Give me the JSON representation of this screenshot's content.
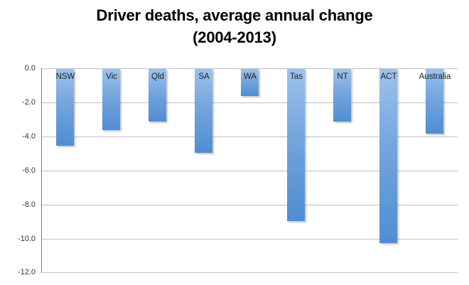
{
  "title": {
    "line1": "Driver deaths, average annual change",
    "line2": "(2004-2013)"
  },
  "chart_data": {
    "type": "bar",
    "title": "Driver deaths, average annual change (2004-2013)",
    "categories": [
      "NSW",
      "Vic",
      "Qld",
      "SA",
      "WA",
      "Tas",
      "NT",
      "ACT",
      "Australia"
    ],
    "values": [
      -4.5,
      -3.6,
      -3.1,
      -4.9,
      -1.6,
      -8.9,
      -3.1,
      -10.2,
      -3.8
    ],
    "xlabel": "",
    "ylabel": "",
    "ylim": [
      -12.0,
      0.0
    ],
    "yticks": [
      0.0,
      -2.0,
      -4.0,
      -6.0,
      -8.0,
      -10.0,
      -12.0
    ],
    "ytick_labels": [
      "0.0",
      "-2.0",
      "-4.0",
      "-6.0",
      "-8.0",
      "-10.0",
      "-12.0"
    ],
    "grid": true,
    "legend": false,
    "bar_direction": "downward",
    "category_label_position": "inside-top",
    "colors": {
      "bar_top": "#9dc2ea",
      "bar_bottom": "#4f8dd3",
      "gridline": "#c6c6c6",
      "axis_line": "#7f7f7f",
      "title_text": "#000000",
      "tick_text": "#333333",
      "category_text": "#1f1f1f",
      "background": "#ffffff"
    }
  }
}
